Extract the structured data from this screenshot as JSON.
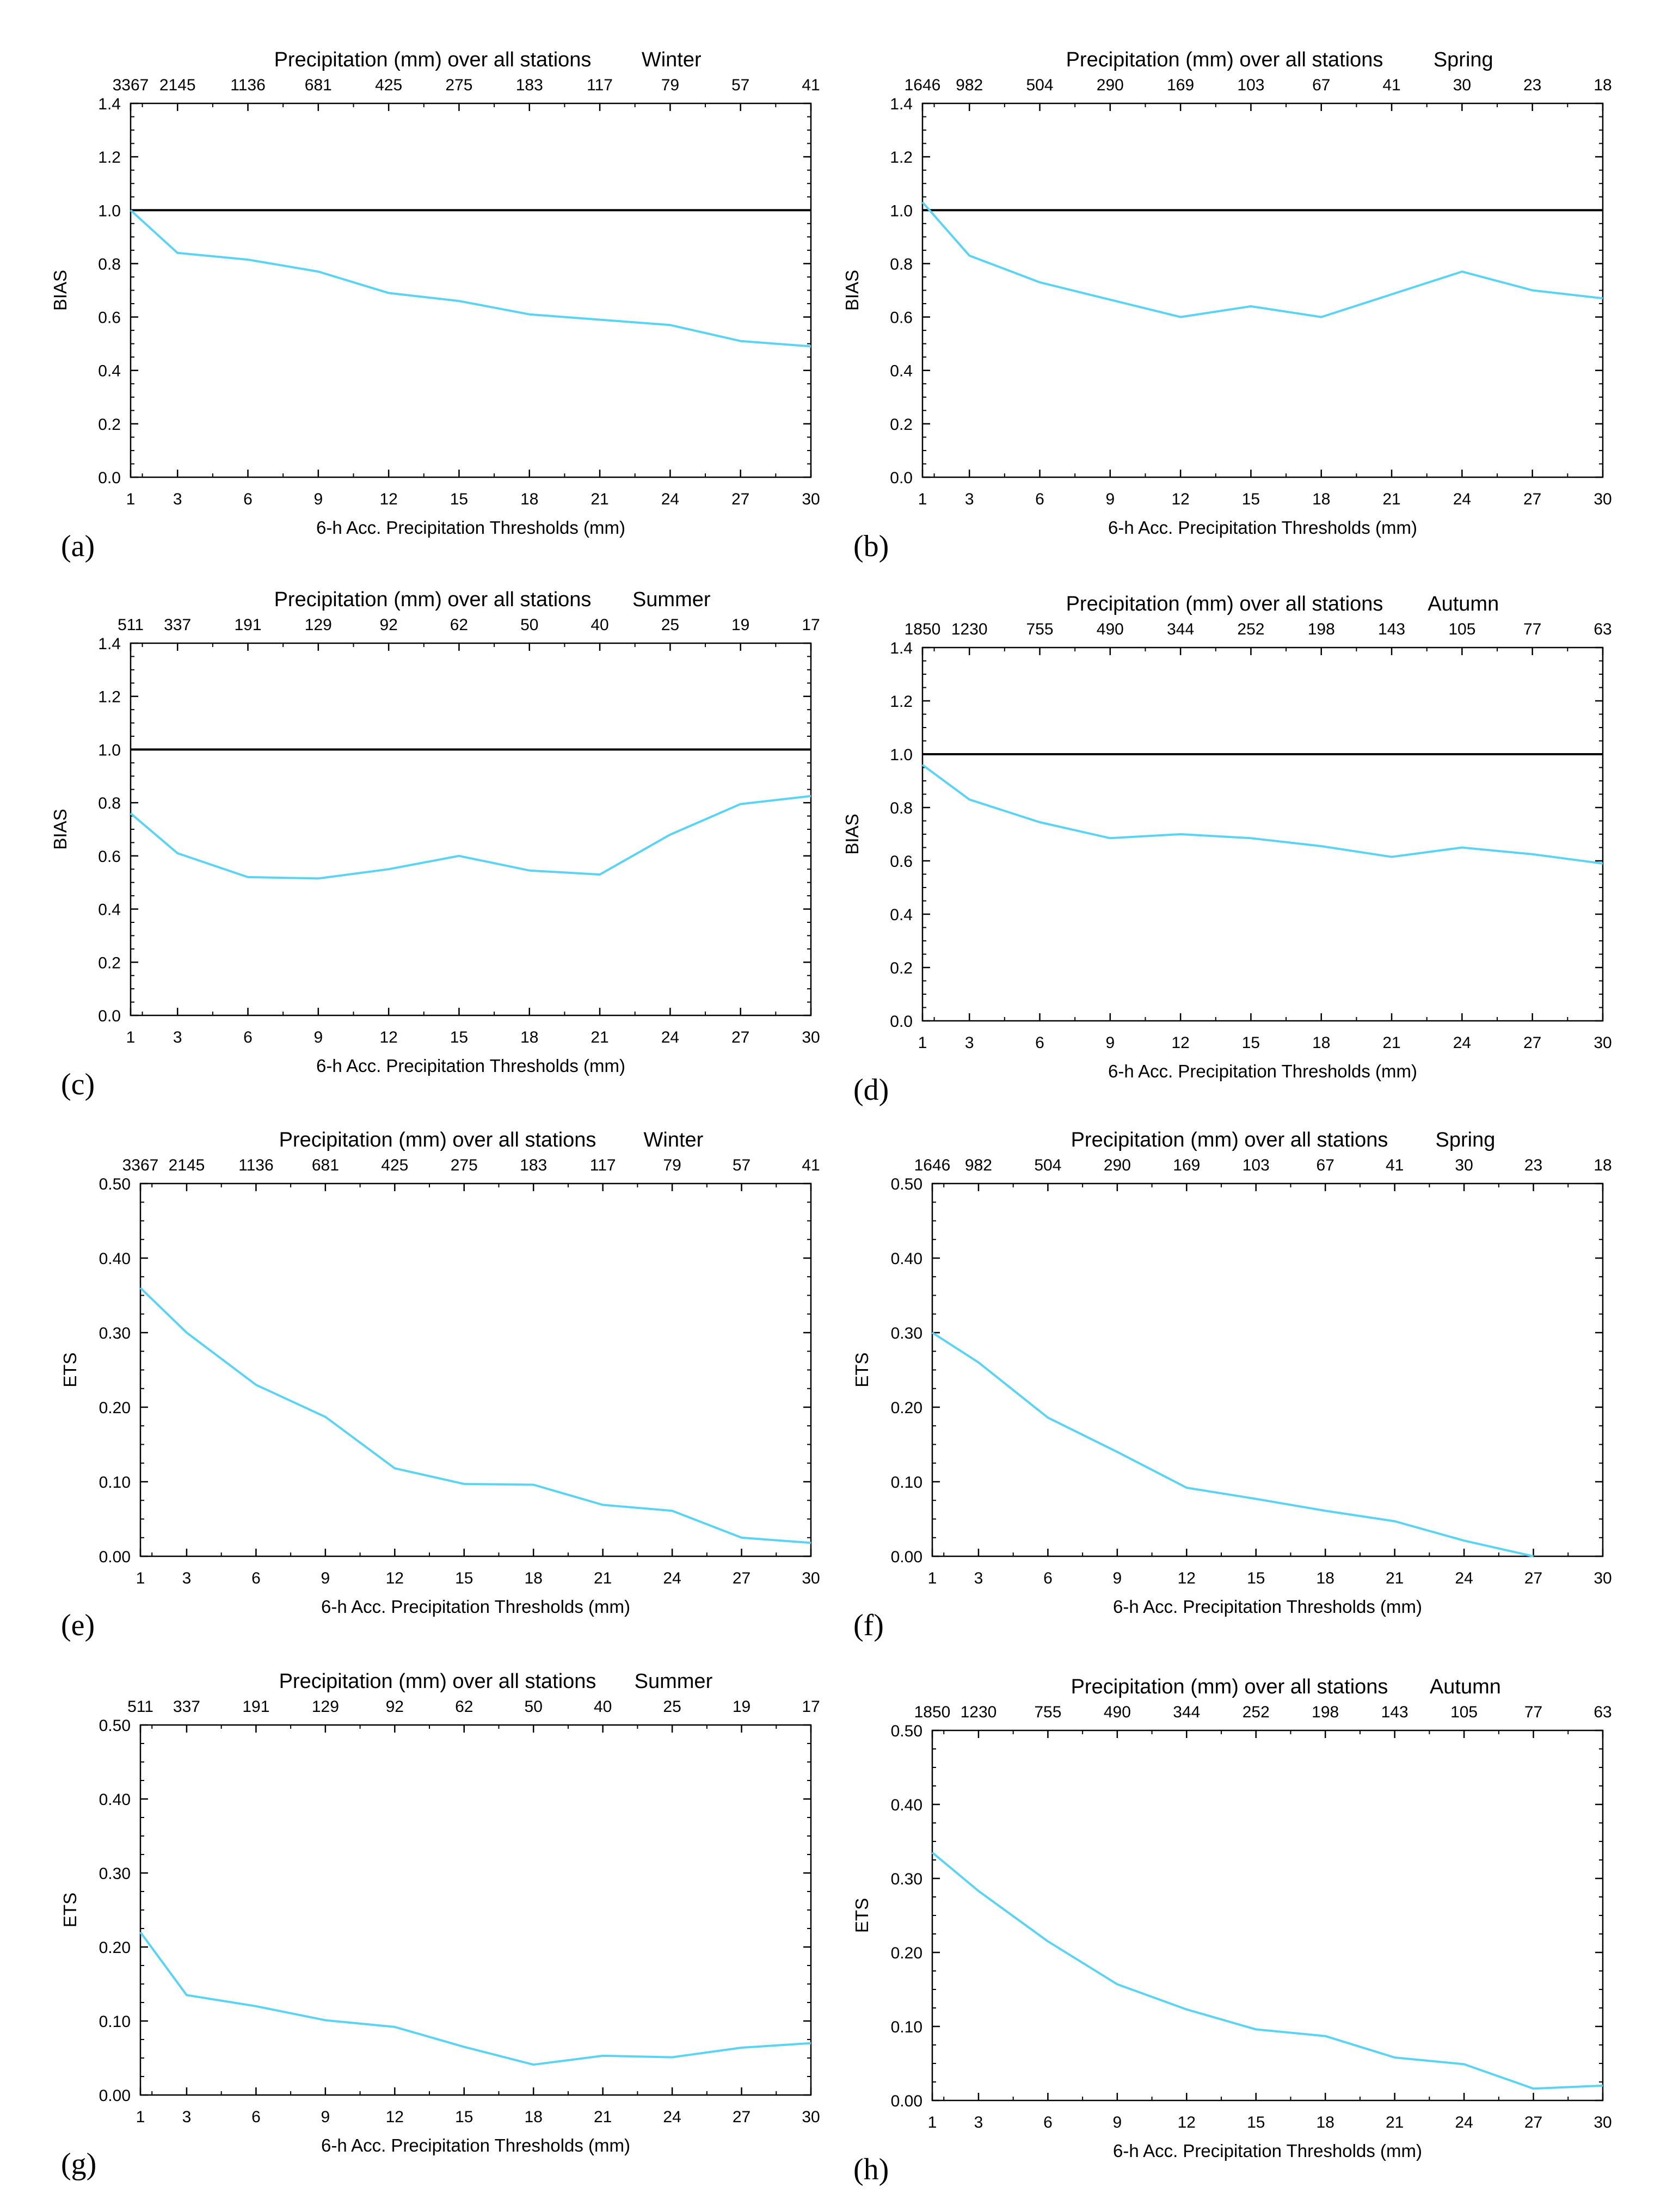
{
  "figure": {
    "colors": {
      "series": "#5bd3f3",
      "axis": "#000000",
      "reference_line": "#000000"
    }
  },
  "chart_data": [
    {
      "panel": "(a)",
      "type": "line",
      "season": "Winter",
      "title": "Precipitation (mm) over all stations",
      "xlabel": "6-h Acc. Precipitation Thresholds (mm)",
      "ylabel": "BIAS",
      "x": [
        1,
        3,
        6,
        9,
        12,
        15,
        18,
        21,
        24,
        27,
        30
      ],
      "top_ticks": [
        "3367",
        "2145",
        "1136",
        "681",
        "425",
        "275",
        "183",
        "117",
        "79",
        "57",
        "41"
      ],
      "y_ticks": [
        "0.0",
        "0.2",
        "0.4",
        "0.6",
        "0.8",
        "1.0",
        "1.2",
        "1.4"
      ],
      "ylim": [
        0,
        1.4
      ],
      "reference_line": 1.0,
      "values": [
        1.0,
        0.84,
        0.815,
        0.77,
        0.69,
        0.66,
        0.61,
        0.59,
        0.57,
        0.51,
        0.49
      ]
    },
    {
      "panel": "(b)",
      "type": "line",
      "season": "Spring",
      "title": "Precipitation (mm) over all stations",
      "xlabel": "6-h Acc. Precipitation Thresholds (mm)",
      "ylabel": "BIAS",
      "x": [
        1,
        3,
        6,
        9,
        12,
        15,
        18,
        21,
        24,
        27,
        30
      ],
      "top_ticks": [
        "1646",
        "982",
        "504",
        "290",
        "169",
        "103",
        "67",
        "41",
        "30",
        "23",
        "18"
      ],
      "y_ticks": [
        "0.0",
        "0.2",
        "0.4",
        "0.6",
        "0.8",
        "1.0",
        "1.2",
        "1.4"
      ],
      "ylim": [
        0,
        1.4
      ],
      "reference_line": 1.0,
      "values": [
        1.03,
        0.83,
        0.73,
        0.665,
        0.6,
        0.64,
        0.6,
        0.685,
        0.77,
        0.7,
        0.67
      ]
    },
    {
      "panel": "(c)",
      "type": "line",
      "season": "Summer",
      "title": "Precipitation (mm) over all stations",
      "xlabel": "6-h Acc. Precipitation Thresholds (mm)",
      "ylabel": "BIAS",
      "x": [
        1,
        3,
        6,
        9,
        12,
        15,
        18,
        21,
        24,
        27,
        30
      ],
      "top_ticks": [
        "511",
        "337",
        "191",
        "129",
        "92",
        "62",
        "50",
        "40",
        "25",
        "19",
        "17"
      ],
      "y_ticks": [
        "0.0",
        "0.2",
        "0.4",
        "0.6",
        "0.8",
        "1.0",
        "1.2",
        "1.4"
      ],
      "ylim": [
        0,
        1.4
      ],
      "reference_line": 1.0,
      "values": [
        0.76,
        0.61,
        0.52,
        0.515,
        0.55,
        0.6,
        0.545,
        0.53,
        0.68,
        0.795,
        0.825
      ]
    },
    {
      "panel": "(d)",
      "type": "line",
      "season": "Autumn",
      "title": "Precipitation (mm) over all stations",
      "xlabel": "6-h Acc. Precipitation Thresholds (mm)",
      "ylabel": "BIAS",
      "x": [
        1,
        3,
        6,
        9,
        12,
        15,
        18,
        21,
        24,
        27,
        30
      ],
      "top_ticks": [
        "1850",
        "1230",
        "755",
        "490",
        "344",
        "252",
        "198",
        "143",
        "105",
        "77",
        "63"
      ],
      "y_ticks": [
        "0.0",
        "0.2",
        "0.4",
        "0.6",
        "0.8",
        "1.0",
        "1.2",
        "1.4"
      ],
      "ylim": [
        0,
        1.4
      ],
      "reference_line": 1.0,
      "values": [
        0.96,
        0.83,
        0.745,
        0.685,
        0.7,
        0.685,
        0.655,
        0.615,
        0.65,
        0.625,
        0.59
      ]
    },
    {
      "panel": "(e)",
      "type": "line",
      "season": "Winter",
      "title": "Precipitation (mm) over all stations",
      "xlabel": "6-h Acc. Precipitation Thresholds (mm)",
      "ylabel": "ETS",
      "x": [
        1,
        3,
        6,
        9,
        12,
        15,
        18,
        21,
        24,
        27,
        30
      ],
      "top_ticks": [
        "3367",
        "2145",
        "1136",
        "681",
        "425",
        "275",
        "183",
        "117",
        "79",
        "57",
        "41"
      ],
      "y_ticks": [
        "0.00",
        "0.10",
        "0.20",
        "0.30",
        "0.40",
        "0.50"
      ],
      "ylim": [
        0,
        0.5
      ],
      "reference_line": null,
      "values": [
        0.36,
        0.3,
        0.23,
        0.187,
        0.118,
        0.097,
        0.096,
        0.069,
        0.061,
        0.025,
        0.018
      ]
    },
    {
      "panel": "(f)",
      "type": "line",
      "season": "Spring",
      "title": "Precipitation (mm) over all stations",
      "xlabel": "6-h Acc. Precipitation Thresholds (mm)",
      "ylabel": "ETS",
      "x": [
        1,
        3,
        6,
        9,
        12,
        15,
        18,
        21,
        24,
        27,
        30
      ],
      "top_ticks": [
        "1646",
        "982",
        "504",
        "290",
        "169",
        "103",
        "67",
        "41",
        "30",
        "23",
        "18"
      ],
      "y_ticks": [
        "0.00",
        "0.10",
        "0.20",
        "0.30",
        "0.40",
        "0.50"
      ],
      "ylim": [
        0,
        0.5
      ],
      "reference_line": null,
      "values": [
        0.3,
        0.26,
        0.186,
        0.14,
        0.092,
        0.077,
        0.061,
        0.047,
        0.021,
        0.0,
        null
      ]
    },
    {
      "panel": "(g)",
      "type": "line",
      "season": "Summer",
      "title": "Precipitation (mm) over all stations",
      "xlabel": "6-h Acc. Precipitation Thresholds (mm)",
      "ylabel": "ETS",
      "x": [
        1,
        3,
        6,
        9,
        12,
        15,
        18,
        21,
        24,
        27,
        30
      ],
      "top_ticks": [
        "511",
        "337",
        "191",
        "129",
        "92",
        "62",
        "50",
        "40",
        "25",
        "19",
        "17"
      ],
      "y_ticks": [
        "0.00",
        "0.10",
        "0.20",
        "0.30",
        "0.40",
        "0.50"
      ],
      "ylim": [
        0,
        0.5
      ],
      "reference_line": null,
      "values": [
        0.22,
        0.135,
        0.12,
        0.101,
        0.092,
        0.065,
        0.041,
        0.053,
        0.051,
        0.064,
        0.07
      ]
    },
    {
      "panel": "(h)",
      "type": "line",
      "season": "Autumn",
      "title": "Precipitation (mm) over all stations",
      "xlabel": "6-h Acc. Precipitation Thresholds (mm)",
      "ylabel": "ETS",
      "x": [
        1,
        3,
        6,
        9,
        12,
        15,
        18,
        21,
        24,
        27,
        30
      ],
      "top_ticks": [
        "1850",
        "1230",
        "755",
        "490",
        "344",
        "252",
        "198",
        "143",
        "105",
        "77",
        "63"
      ],
      "y_ticks": [
        "0.00",
        "0.10",
        "0.20",
        "0.30",
        "0.40",
        "0.50"
      ],
      "ylim": [
        0,
        0.5
      ],
      "reference_line": null,
      "values": [
        0.335,
        0.283,
        0.215,
        0.157,
        0.123,
        0.096,
        0.087,
        0.058,
        0.049,
        0.016,
        0.02
      ]
    }
  ]
}
